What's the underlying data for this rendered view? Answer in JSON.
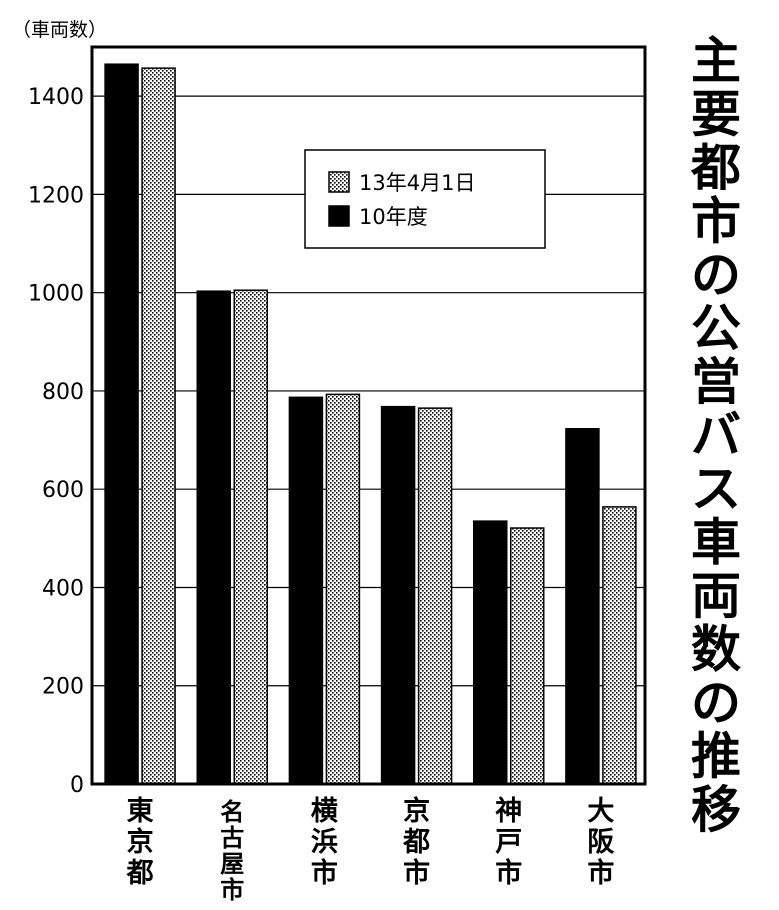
{
  "chart_data": {
    "type": "bar",
    "title": "主要都市の公営バス車両数の推移",
    "ylabel": "（車両数）",
    "ylim": [
      0,
      1500
    ],
    "yticks": [
      0,
      200,
      400,
      600,
      800,
      1000,
      1200,
      1400
    ],
    "grid": true,
    "legend_position": "top-center",
    "categories": [
      "東京都",
      "名古屋市",
      "横浜市",
      "京都市",
      "神戸市",
      "大阪市"
    ],
    "series": [
      {
        "name": "10年度",
        "values": [
          1465,
          1003,
          787,
          768,
          535,
          723
        ],
        "color": "#000000",
        "pattern": "solid"
      },
      {
        "name": "13年4月1日",
        "values": [
          1457,
          1005,
          793,
          765,
          521,
          564
        ],
        "color": "#c8c8c8",
        "pattern": "dotted"
      }
    ],
    "legend_order": [
      "13年4月1日",
      "10年度"
    ]
  }
}
